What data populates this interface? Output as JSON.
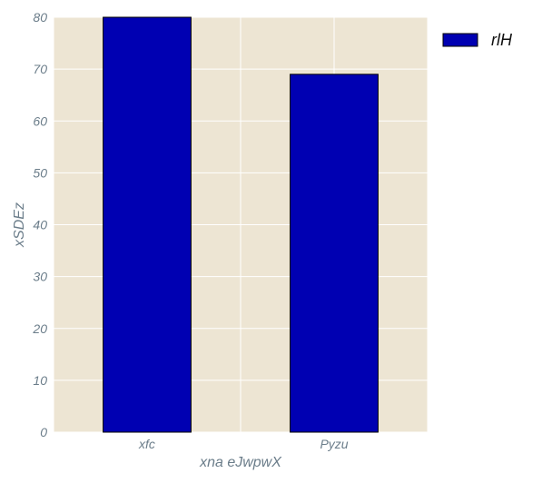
{
  "chart_data": {
    "type": "bar",
    "categories": [
      "xfc",
      "Pyzu"
    ],
    "series": [
      {
        "name": "rlH",
        "values": [
          80,
          69
        ]
      }
    ],
    "xlabel": "xna eJwpwX",
    "ylabel": "xSDEz",
    "ylim": [
      0,
      80
    ],
    "yticks": [
      0,
      10,
      20,
      30,
      40,
      50,
      60,
      70,
      80
    ],
    "grid": true,
    "legend_position": "top-right, outside plot",
    "colors": {
      "bar_fill": "#0000b2",
      "bar_edge": "#000000",
      "plot_background": "#ede5d3",
      "grid": "#ffffff",
      "tick_text": "#6b7d8a"
    }
  }
}
